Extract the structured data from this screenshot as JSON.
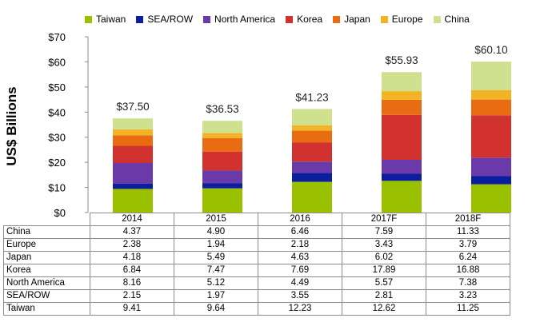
{
  "chart_data": {
    "type": "bar",
    "stacked": true,
    "categories": [
      "2014",
      "2015",
      "2016",
      "2017F",
      "2018F"
    ],
    "ylabel": "US$ Billions",
    "ylim": [
      0,
      70
    ],
    "yticks": [
      "$0",
      "$10",
      "$20",
      "$30",
      "$40",
      "$50",
      "$60",
      "$70"
    ],
    "ytick_values": [
      0,
      10,
      20,
      30,
      40,
      50,
      60,
      70
    ],
    "totals": [
      "$37.50",
      "$36.53",
      "$41.23",
      "$55.93",
      "$60.10"
    ],
    "total_values": [
      37.5,
      36.53,
      41.23,
      55.93,
      60.1
    ],
    "series": [
      {
        "name": "Taiwan",
        "color": "#99c100",
        "values": [
          9.41,
          9.64,
          12.23,
          12.62,
          11.25
        ],
        "labels": [
          "9.41",
          "9.64",
          "12.23",
          "12.62",
          "11.25"
        ]
      },
      {
        "name": "SEA/ROW",
        "color": "#0b1e9e",
        "values": [
          2.15,
          1.97,
          3.55,
          2.81,
          3.23
        ],
        "labels": [
          "2.15",
          "1.97",
          "3.55",
          "2.81",
          "3.23"
        ]
      },
      {
        "name": "North America",
        "color": "#6a3aaa",
        "values": [
          8.16,
          5.12,
          4.49,
          5.57,
          7.38
        ],
        "labels": [
          "8.16",
          "5.12",
          "4.49",
          "5.57",
          "7.38"
        ]
      },
      {
        "name": "Korea",
        "color": "#d1322f",
        "values": [
          6.84,
          7.47,
          7.69,
          17.89,
          16.88
        ],
        "labels": [
          "6.84",
          "7.47",
          "7.69",
          "17.89",
          "16.88"
        ]
      },
      {
        "name": "Japan",
        "color": "#ea6c12",
        "values": [
          4.18,
          5.49,
          4.63,
          6.02,
          6.24
        ],
        "labels": [
          "4.18",
          "5.49",
          "4.63",
          "6.02",
          "6.24"
        ]
      },
      {
        "name": "Europe",
        "color": "#f2b324",
        "values": [
          2.38,
          1.94,
          2.18,
          3.43,
          3.79
        ],
        "labels": [
          "2.38",
          "1.94",
          "2.18",
          "3.43",
          "3.79"
        ]
      },
      {
        "name": "China",
        "color": "#cfe08f",
        "values": [
          4.37,
          4.9,
          6.46,
          7.59,
          11.33
        ],
        "labels": [
          "4.37",
          "4.90",
          "6.46",
          "7.59",
          "11.33"
        ]
      }
    ],
    "table_row_order": [
      "China",
      "Europe",
      "Japan",
      "Korea",
      "North America",
      "SEA/ROW",
      "Taiwan"
    ],
    "grid": false,
    "legend": "top"
  }
}
